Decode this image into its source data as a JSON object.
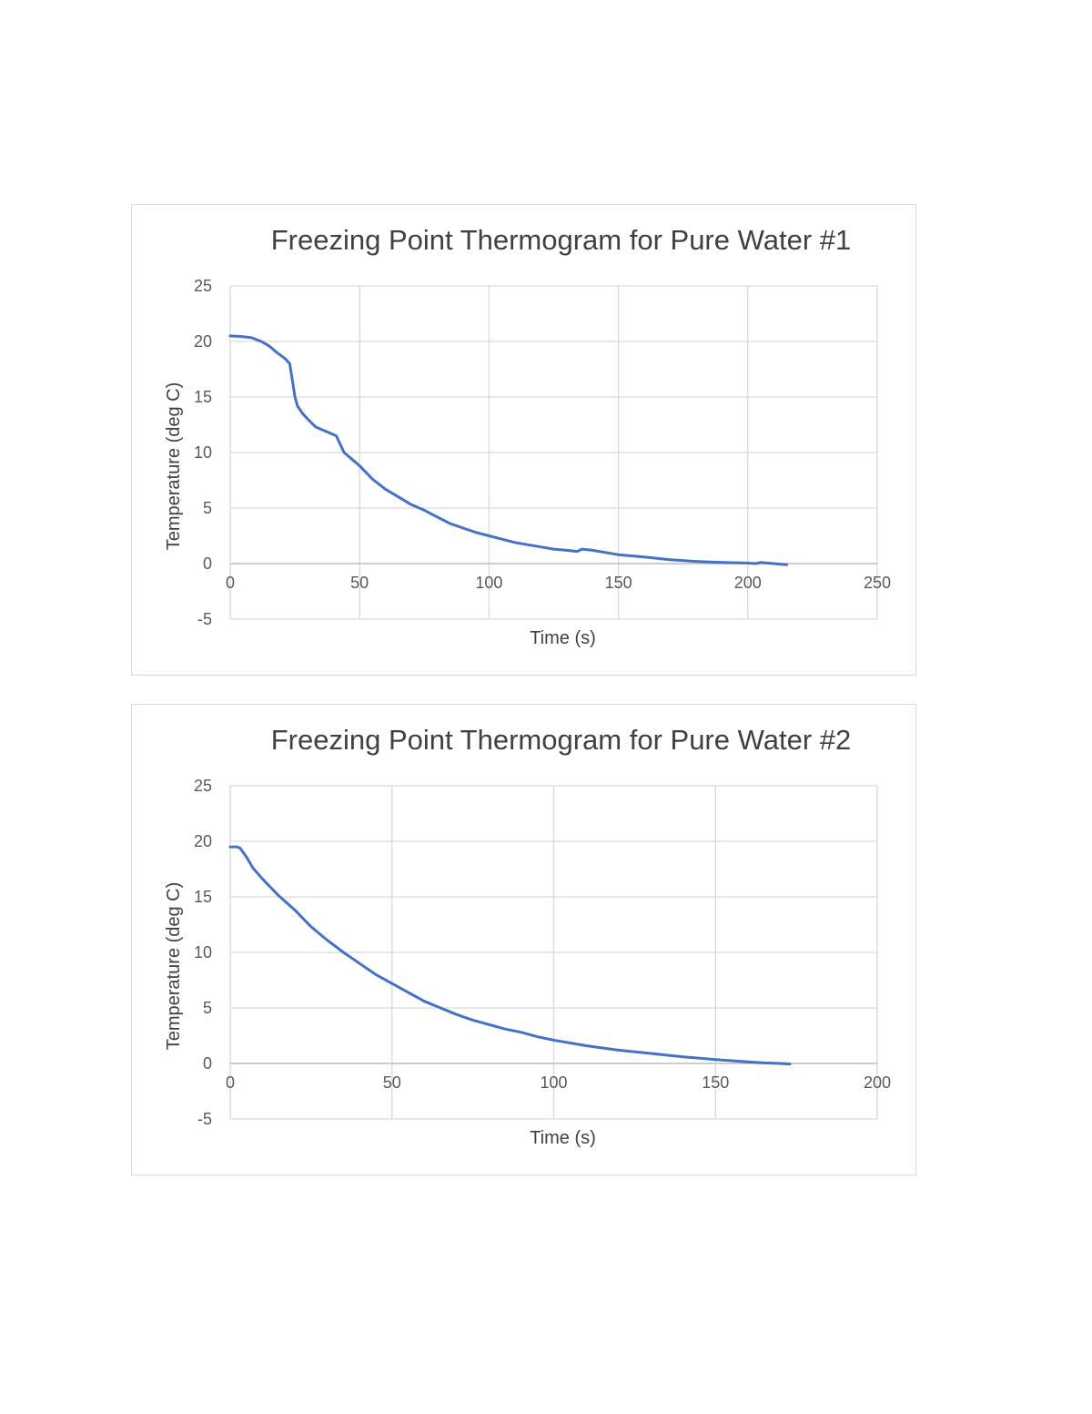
{
  "chart_data": [
    {
      "type": "line",
      "title": "Freezing Point Thermogram for Pure Water #1",
      "xlabel": "Time (s)",
      "ylabel": "Temperature (deg C)",
      "xlim": [
        0,
        250
      ],
      "ylim": [
        -5,
        25
      ],
      "xticks": [
        "0",
        "50",
        "100",
        "150",
        "200",
        "250"
      ],
      "yticks": [
        "25",
        "20",
        "15",
        "10",
        "5",
        "0",
        "-5"
      ],
      "grid": true,
      "legend": "none",
      "color": "#4472c4",
      "series": [
        {
          "x": [
            0,
            4,
            8,
            12,
            15,
            18,
            21,
            23,
            24,
            25,
            26,
            28,
            30,
            33,
            35,
            38,
            41,
            42,
            44,
            47,
            50,
            55,
            60,
            65,
            70,
            75,
            80,
            85,
            90,
            95,
            100,
            105,
            110,
            115,
            120,
            125,
            130,
            134,
            136,
            140,
            145,
            150,
            160,
            170,
            180,
            190,
            200,
            203,
            205,
            210,
            215
          ],
          "y": [
            20.5,
            20.45,
            20.35,
            20.0,
            19.6,
            19.0,
            18.5,
            18.0,
            16.5,
            15.0,
            14.2,
            13.5,
            13.0,
            12.3,
            12.1,
            11.8,
            11.5,
            11.0,
            10.0,
            9.4,
            8.8,
            7.6,
            6.7,
            6.0,
            5.3,
            4.8,
            4.2,
            3.6,
            3.2,
            2.8,
            2.5,
            2.2,
            1.9,
            1.7,
            1.5,
            1.3,
            1.2,
            1.1,
            1.3,
            1.2,
            1.0,
            0.8,
            0.6,
            0.35,
            0.2,
            0.1,
            0.05,
            0.0,
            0.1,
            0.0,
            -0.1
          ]
        }
      ]
    },
    {
      "type": "line",
      "title": "Freezing Point Thermogram for Pure Water #2",
      "xlabel": "Time (s)",
      "ylabel": "Temperature (deg C)",
      "xlim": [
        0,
        200
      ],
      "ylim": [
        -5,
        25
      ],
      "xticks": [
        "0",
        "50",
        "100",
        "150",
        "200"
      ],
      "yticks": [
        "25",
        "20",
        "15",
        "10",
        "5",
        "0",
        "-5"
      ],
      "grid": true,
      "legend": "none",
      "color": "#4472c4",
      "series": [
        {
          "x": [
            0,
            2,
            3,
            5,
            7,
            10,
            15,
            20,
            25,
            30,
            35,
            40,
            45,
            50,
            55,
            60,
            65,
            70,
            75,
            80,
            85,
            90,
            95,
            100,
            110,
            120,
            130,
            140,
            150,
            160,
            165,
            170,
            173
          ],
          "y": [
            19.5,
            19.5,
            19.4,
            18.6,
            17.6,
            16.6,
            15.1,
            13.8,
            12.3,
            11.1,
            10.0,
            9.0,
            8.0,
            7.2,
            6.4,
            5.6,
            5.0,
            4.4,
            3.9,
            3.5,
            3.1,
            2.8,
            2.4,
            2.1,
            1.6,
            1.2,
            0.9,
            0.6,
            0.35,
            0.15,
            0.05,
            0.0,
            -0.05
          ]
        }
      ]
    }
  ]
}
